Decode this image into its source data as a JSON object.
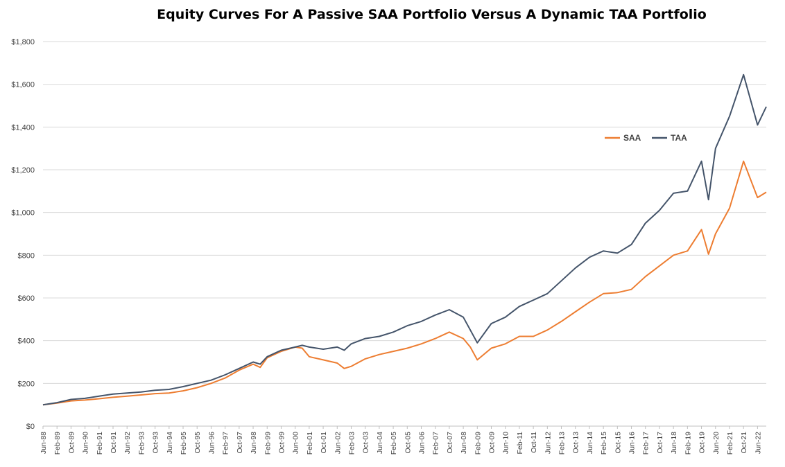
{
  "chart_data": {
    "type": "line",
    "title": "Equity Curves For A Passive SAA Portfolio Versus A Dynamic TAA Portfolio",
    "xlabel": "",
    "ylabel": "",
    "ylim": [
      0,
      1800
    ],
    "yticks": [
      "$0",
      "$200",
      "$400",
      "$600",
      "$800",
      "$1,000",
      "$1,200",
      "$1,400",
      "$1,600",
      "$1,800"
    ],
    "ytick_values": [
      0,
      200,
      400,
      600,
      800,
      1000,
      1200,
      1400,
      1600,
      1800
    ],
    "xticks": [
      "Jun-88",
      "Feb-89",
      "Oct-89",
      "Jun-90",
      "Feb-91",
      "Oct-91",
      "Jun-92",
      "Feb-93",
      "Oct-93",
      "Jun-94",
      "Feb-95",
      "Oct-95",
      "Jun-96",
      "Feb-97",
      "Oct-97",
      "Jun-98",
      "Feb-99",
      "Oct-99",
      "Jun-00",
      "Feb-01",
      "Oct-01",
      "Jun-02",
      "Feb-03",
      "Oct-03",
      "Jun-04",
      "Feb-05",
      "Oct-05",
      "Jun-06",
      "Feb-07",
      "Oct-07",
      "Jun-08",
      "Feb-09",
      "Oct-09",
      "Jun-10",
      "Feb-11",
      "Oct-11",
      "Jun-12",
      "Feb-13",
      "Oct-13",
      "Jun-14",
      "Feb-15",
      "Oct-15",
      "Jun-16",
      "Feb-17",
      "Oct-17",
      "Jun-18",
      "Feb-19",
      "Oct-19",
      "Jun-20",
      "Feb-21",
      "Oct-21",
      "Jun-22"
    ],
    "grid": true,
    "legend_position": "right",
    "series": [
      {
        "name": "SAA",
        "color": "#ED7D31",
        "points": [
          [
            "Jun-88",
            100
          ],
          [
            "Feb-89",
            108
          ],
          [
            "Oct-89",
            118
          ],
          [
            "Jun-90",
            122
          ],
          [
            "Feb-91",
            128
          ],
          [
            "Oct-91",
            135
          ],
          [
            "Jun-92",
            140
          ],
          [
            "Feb-93",
            146
          ],
          [
            "Oct-93",
            152
          ],
          [
            "Jun-94",
            155
          ],
          [
            "Feb-95",
            165
          ],
          [
            "Oct-95",
            180
          ],
          [
            "Jun-96",
            200
          ],
          [
            "Feb-97",
            225
          ],
          [
            "Oct-97",
            262
          ],
          [
            "Jun-98",
            290
          ],
          [
            "Oct-98",
            275
          ],
          [
            "Feb-99",
            320
          ],
          [
            "Oct-99",
            350
          ],
          [
            "Jun-00",
            370
          ],
          [
            "Oct-00",
            365
          ],
          [
            "Feb-01",
            325
          ],
          [
            "Oct-01",
            310
          ],
          [
            "Jun-02",
            295
          ],
          [
            "Oct-02",
            270
          ],
          [
            "Feb-03",
            280
          ],
          [
            "Oct-03",
            315
          ],
          [
            "Jun-04",
            335
          ],
          [
            "Feb-05",
            350
          ],
          [
            "Oct-05",
            365
          ],
          [
            "Jun-06",
            385
          ],
          [
            "Feb-07",
            410
          ],
          [
            "Oct-07",
            440
          ],
          [
            "Jun-08",
            410
          ],
          [
            "Oct-08",
            370
          ],
          [
            "Feb-09",
            310
          ],
          [
            "Oct-09",
            365
          ],
          [
            "Jun-10",
            385
          ],
          [
            "Feb-11",
            420
          ],
          [
            "Oct-11",
            420
          ],
          [
            "Jun-12",
            450
          ],
          [
            "Feb-13",
            490
          ],
          [
            "Oct-13",
            535
          ],
          [
            "Jun-14",
            580
          ],
          [
            "Feb-15",
            620
          ],
          [
            "Oct-15",
            625
          ],
          [
            "Jun-16",
            640
          ],
          [
            "Feb-17",
            700
          ],
          [
            "Oct-17",
            750
          ],
          [
            "Jun-18",
            800
          ],
          [
            "Feb-19",
            820
          ],
          [
            "Oct-19",
            920
          ],
          [
            "Feb-20",
            805
          ],
          [
            "Jun-20",
            900
          ],
          [
            "Feb-21",
            1020
          ],
          [
            "Oct-21",
            1240
          ],
          [
            "Jun-22",
            1070
          ],
          [
            "Nov-22",
            1095
          ]
        ]
      },
      {
        "name": "TAA",
        "color": "#44546A",
        "points": [
          [
            "Jun-88",
            100
          ],
          [
            "Feb-89",
            110
          ],
          [
            "Oct-89",
            125
          ],
          [
            "Jun-90",
            130
          ],
          [
            "Feb-91",
            140
          ],
          [
            "Oct-91",
            150
          ],
          [
            "Jun-92",
            155
          ],
          [
            "Feb-93",
            160
          ],
          [
            "Oct-93",
            168
          ],
          [
            "Jun-94",
            172
          ],
          [
            "Feb-95",
            185
          ],
          [
            "Oct-95",
            200
          ],
          [
            "Jun-96",
            215
          ],
          [
            "Feb-97",
            240
          ],
          [
            "Oct-97",
            270
          ],
          [
            "Jun-98",
            300
          ],
          [
            "Oct-98",
            290
          ],
          [
            "Feb-99",
            325
          ],
          [
            "Oct-99",
            355
          ],
          [
            "Jun-00",
            370
          ],
          [
            "Oct-00",
            378
          ],
          [
            "Feb-01",
            370
          ],
          [
            "Oct-01",
            360
          ],
          [
            "Jun-02",
            370
          ],
          [
            "Oct-02",
            355
          ],
          [
            "Feb-03",
            385
          ],
          [
            "Oct-03",
            410
          ],
          [
            "Jun-04",
            420
          ],
          [
            "Feb-05",
            440
          ],
          [
            "Oct-05",
            470
          ],
          [
            "Jun-06",
            490
          ],
          [
            "Feb-07",
            520
          ],
          [
            "Oct-07",
            545
          ],
          [
            "Jun-08",
            510
          ],
          [
            "Oct-08",
            450
          ],
          [
            "Feb-09",
            390
          ],
          [
            "Oct-09",
            480
          ],
          [
            "Jun-10",
            510
          ],
          [
            "Feb-11",
            560
          ],
          [
            "Oct-11",
            590
          ],
          [
            "Jun-12",
            620
          ],
          [
            "Feb-13",
            680
          ],
          [
            "Oct-13",
            740
          ],
          [
            "Jun-14",
            790
          ],
          [
            "Feb-15",
            820
          ],
          [
            "Oct-15",
            810
          ],
          [
            "Jun-16",
            850
          ],
          [
            "Feb-17",
            950
          ],
          [
            "Oct-17",
            1010
          ],
          [
            "Jun-18",
            1090
          ],
          [
            "Feb-19",
            1100
          ],
          [
            "Oct-19",
            1240
          ],
          [
            "Feb-20",
            1060
          ],
          [
            "Jun-20",
            1300
          ],
          [
            "Feb-21",
            1450
          ],
          [
            "Oct-21",
            1645
          ],
          [
            "Jun-22",
            1410
          ],
          [
            "Nov-22",
            1495
          ]
        ]
      }
    ]
  }
}
